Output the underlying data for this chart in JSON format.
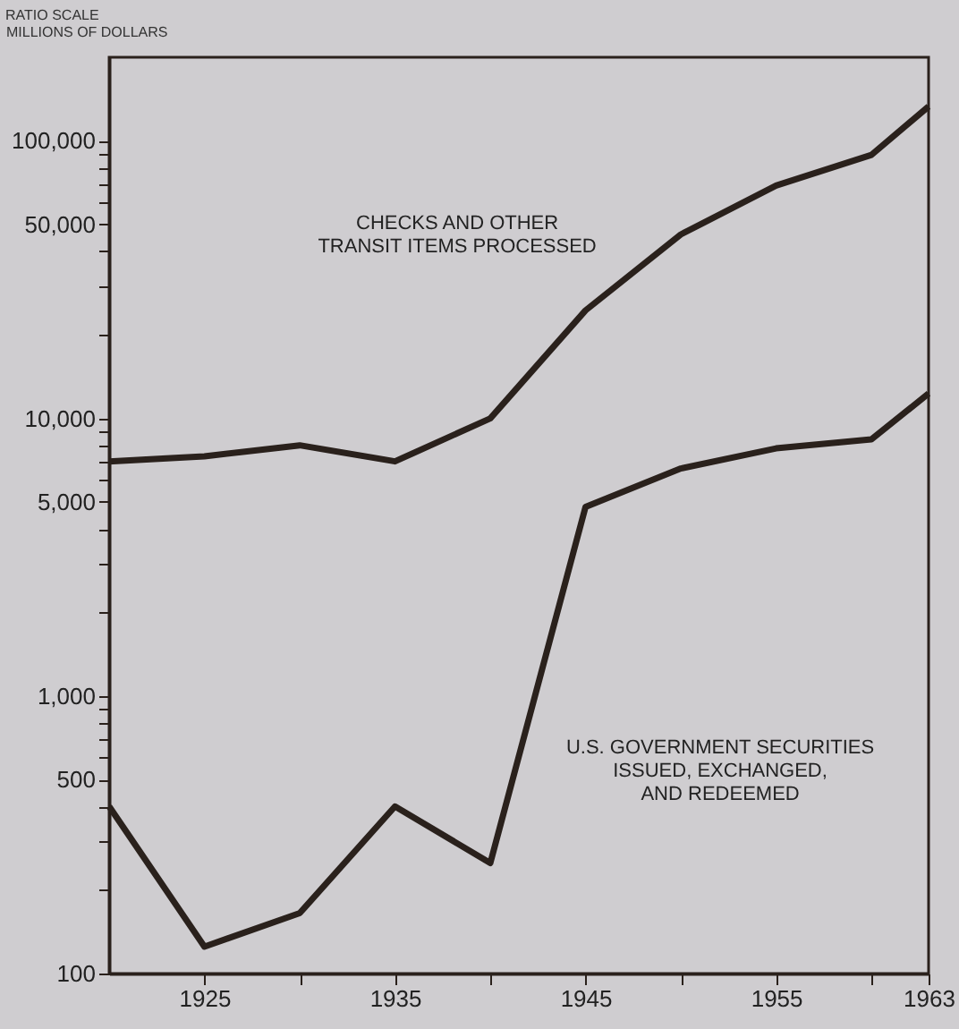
{
  "chart_data": {
    "type": "line",
    "ylabel": "MILLIONS OF DOLLARS",
    "annotations": [
      "RATIO SCALE"
    ],
    "x": [
      1920,
      1925,
      1930,
      1935,
      1940,
      1945,
      1950,
      1955,
      1960,
      1963
    ],
    "series": [
      {
        "name": "CHECKS AND OTHER\nTRANSIT ITEMS PROCESSED",
        "color": "#2a211c",
        "values": [
          7000,
          7300,
          8000,
          7000,
          10000,
          24500,
          46000,
          69000,
          89000,
          133000
        ]
      },
      {
        "name": "U.S. GOVERNMENT SECURITIES\nISSUED, EXCHANGED,\nAND REDEEMED",
        "color": "#2a211c",
        "values": [
          400,
          125,
          165,
          400,
          250,
          4800,
          6600,
          7800,
          8400,
          12300
        ]
      }
    ],
    "log": "y",
    "ylim": [
      100,
      200000
    ],
    "yticks": [
      {
        "value": 100,
        "label": "100"
      },
      {
        "value": 200,
        "label": null
      },
      {
        "value": 300,
        "label": null
      },
      {
        "value": 400,
        "label": null
      },
      {
        "value": 500,
        "label": "500"
      },
      {
        "value": 600,
        "label": null
      },
      {
        "value": 700,
        "label": null
      },
      {
        "value": 800,
        "label": null
      },
      {
        "value": 900,
        "label": null
      },
      {
        "value": 1000,
        "label": "1,000"
      },
      {
        "value": 2000,
        "label": null
      },
      {
        "value": 3000,
        "label": null
      },
      {
        "value": 4000,
        "label": null
      },
      {
        "value": 5000,
        "label": "5,000"
      },
      {
        "value": 6000,
        "label": null
      },
      {
        "value": 7000,
        "label": null
      },
      {
        "value": 8000,
        "label": null
      },
      {
        "value": 9000,
        "label": null
      },
      {
        "value": 10000,
        "label": "10,000"
      },
      {
        "value": 20000,
        "label": null
      },
      {
        "value": 30000,
        "label": null
      },
      {
        "value": 40000,
        "label": null
      },
      {
        "value": 50000,
        "label": "50,000"
      },
      {
        "value": 60000,
        "label": null
      },
      {
        "value": 70000,
        "label": null
      },
      {
        "value": 80000,
        "label": null
      },
      {
        "value": 90000,
        "label": null
      },
      {
        "value": 100000,
        "label": "100,000"
      }
    ],
    "xlim": [
      1920,
      1963
    ],
    "xticks": [
      1925,
      {
        "value": 1930,
        "label": null
      },
      1935,
      {
        "value": 1940,
        "label": null
      },
      1945,
      {
        "value": 1950,
        "label": null
      },
      1955,
      {
        "value": 1960,
        "label": null
      },
      1963
    ],
    "grid": false,
    "legend": false,
    "marker": "none",
    "line_style": "solid"
  }
}
